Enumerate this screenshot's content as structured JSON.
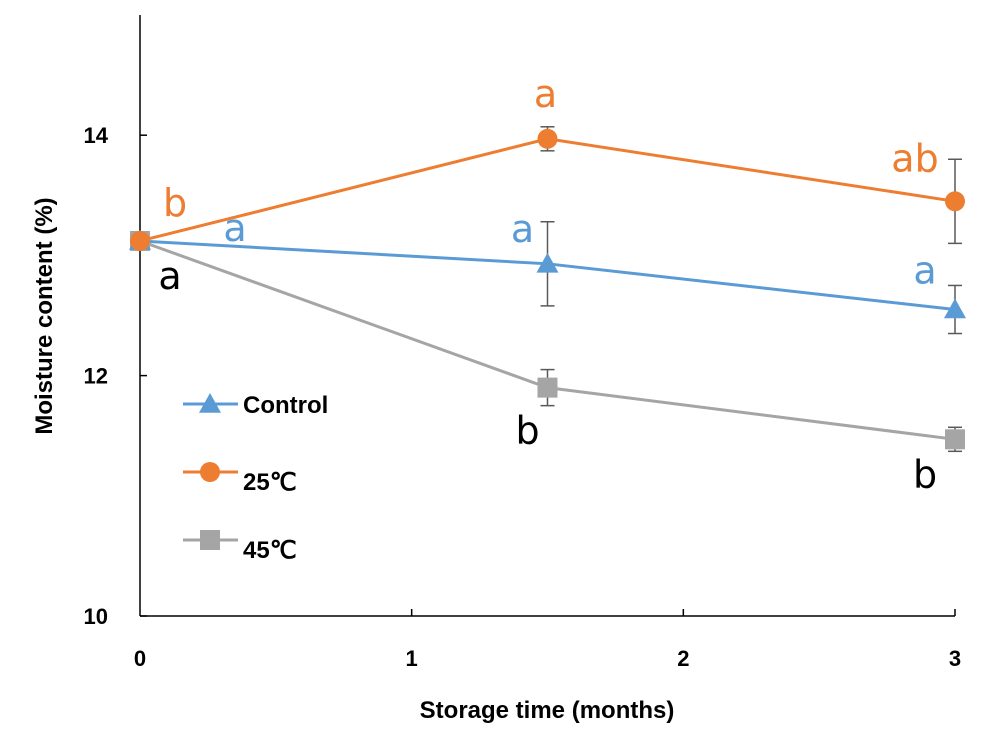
{
  "chart_data": {
    "type": "line",
    "title": "",
    "xlabel": "Storage time (months)",
    "ylabel": "Moisture content (%)",
    "xlim": [
      0,
      3
    ],
    "ylim": [
      10,
      15
    ],
    "x_ticks": [
      "0",
      "1",
      "2",
      "3"
    ],
    "y_ticks": [
      "10",
      "12",
      "14"
    ],
    "grid": false,
    "legend_position": "left-middle",
    "series": [
      {
        "name": "Control",
        "color": "#5b9bd5",
        "marker": "triangle",
        "x": [
          0,
          1.5,
          3
        ],
        "y": [
          13.12,
          12.93,
          12.55
        ],
        "error": [
          0,
          0.35,
          0.2
        ],
        "letters": [
          "a",
          "a",
          "a"
        ]
      },
      {
        "name": "25℃",
        "color": "#ed7d31",
        "marker": "circle",
        "x": [
          0,
          1.5,
          3
        ],
        "y": [
          13.12,
          13.97,
          13.45
        ],
        "error": [
          0,
          0.1,
          0.35
        ],
        "letters": [
          "b",
          "a",
          "ab"
        ]
      },
      {
        "name": "45℃",
        "color": "#a5a5a5",
        "marker": "square",
        "x": [
          0,
          1.5,
          3
        ],
        "y": [
          13.12,
          11.9,
          11.47
        ],
        "error": [
          0,
          0.15,
          0.1
        ],
        "letters": [
          "a",
          "b",
          "b"
        ]
      }
    ]
  }
}
